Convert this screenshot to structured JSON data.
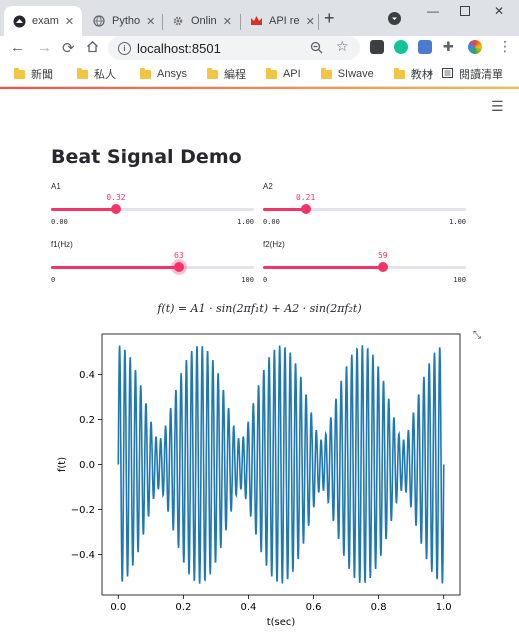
{
  "browser": {
    "tabs": [
      {
        "title": "exam",
        "icon": "streamlit-icon",
        "active": true
      },
      {
        "title": "Pytho",
        "icon": "globe-icon",
        "active": false
      },
      {
        "title": "Onlin",
        "icon": "gear-icon",
        "active": false
      },
      {
        "title": "API re",
        "icon": "crown-icon",
        "active": false
      }
    ],
    "url": "localhost:8501",
    "bookmarks": [
      "新聞",
      "私人",
      "Ansys",
      "編程",
      "API",
      "SIwave",
      "教材"
    ],
    "reading_list": "閱讀清單",
    "bookmarks_more": "»"
  },
  "app": {
    "title": "Beat Signal Demo",
    "accent": "#f63366",
    "sliders": [
      {
        "label": "A1",
        "value": 0.32,
        "value_text": "0.32",
        "min": 0,
        "max": 1,
        "min_text": "0.00",
        "max_text": "1.00"
      },
      {
        "label": "A2",
        "value": 0.21,
        "value_text": "0.21",
        "min": 0,
        "max": 1,
        "min_text": "0.00",
        "max_text": "1.00"
      },
      {
        "label": "f1(Hz)",
        "value": 63,
        "value_text": "63",
        "min": 0,
        "max": 100,
        "min_text": "0",
        "max_text": "100"
      },
      {
        "label": "f2(Hz)",
        "value": 59,
        "value_text": "59",
        "min": 0,
        "max": 100,
        "min_text": "0",
        "max_text": "100"
      }
    ],
    "formula": "f(t) = A1 · sin(2πf₁t) + A2 · sin(2πf₂t)"
  },
  "chart_data": {
    "type": "line",
    "xlabel": "t(sec)",
    "ylabel": "f(t)",
    "xlim": [
      -0.05,
      1.05
    ],
    "ylim": [
      -0.58,
      0.58
    ],
    "xticks": [
      0.0,
      0.2,
      0.4,
      0.6,
      0.8,
      1.0
    ],
    "xtick_labels": [
      "0.0",
      "0.2",
      "0.4",
      "0.6",
      "0.8",
      "1.0"
    ],
    "yticks": [
      -0.4,
      -0.2,
      0.0,
      0.2,
      0.4
    ],
    "ytick_labels": [
      "−0.4",
      "−0.2",
      "0.0",
      "0.2",
      "0.4"
    ],
    "grid": false,
    "line_color": "#1f77b4",
    "series": [
      {
        "function": "A1*sin(2*pi*f1*t) + A2*sin(2*pi*f2*t)",
        "A1": 0.32,
        "A2": 0.21,
        "f1": 63,
        "f2": 59,
        "t_start": 0.0,
        "t_end": 1.0
      }
    ]
  }
}
